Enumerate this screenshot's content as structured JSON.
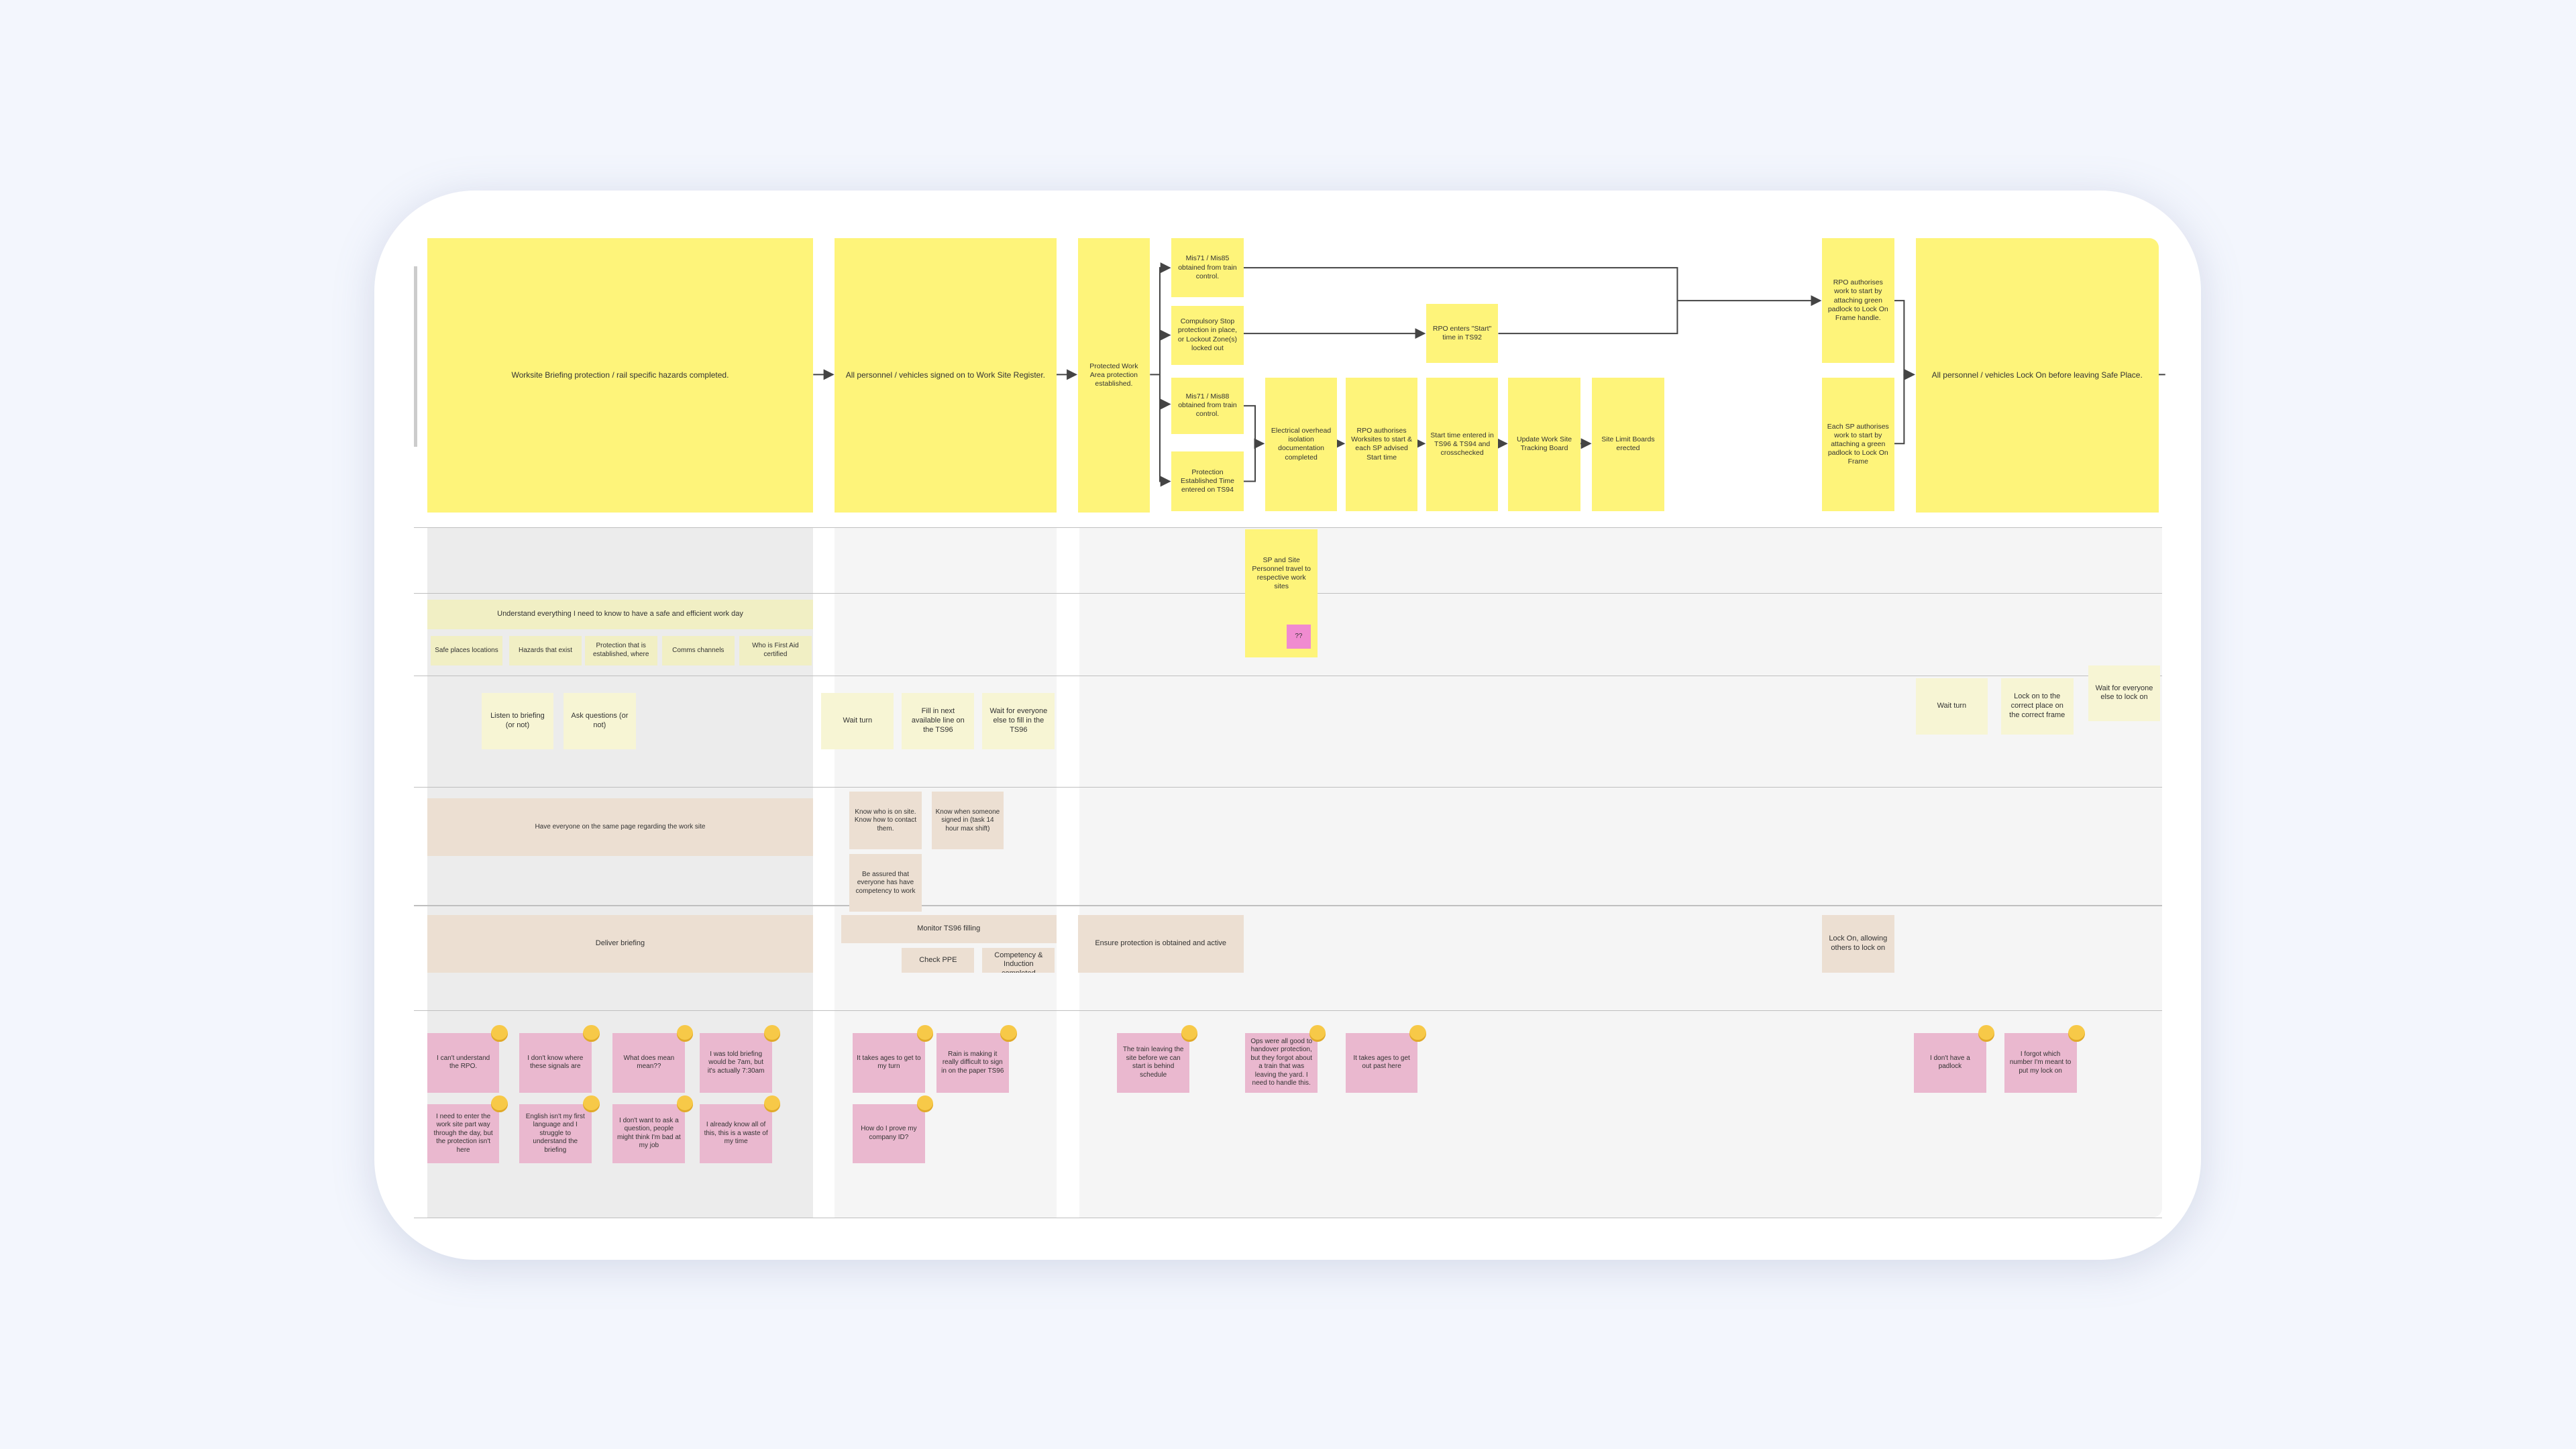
{
  "board": {
    "process_steps": [
      "Worksite Briefing protection / rail specific hazards completed.",
      "All personnel / vehicles signed on to Work Site Register.",
      "Protected Work Area protection established.",
      "Mis71 / Mis85 obtained from train control.",
      "Compulsory Stop protection in place, or Lockout Zone(s) locked out",
      "Mis71 / Mis88 obtained from train control.",
      "Protection Established Time entered on TS94",
      "Electrical overhead isolation documentation completed",
      "RPO authorises Worksites to start & each SP advised Start time",
      "Start time entered in TS96 & TS94 and crosschecked",
      "Update Work Site Tracking Board",
      "Site Limit Boards erected",
      "RPO enters \"Start\" time in TS92",
      "RPO authorises work to start by attaching green padlock to Lock On Frame handle.",
      "Each SP authorises work to start by attaching a green padlock to Lock On Frame",
      "All personnel / vehicles Lock On before leaving Safe Place."
    ],
    "travel_note": "SP and Site Personnel travel to respective work sites",
    "unknown_note": "??",
    "goal": "Understand everything I need to know to have a safe and efficient work day",
    "knowledge_needs": [
      "Safe places locations",
      "Hazards that exist",
      "Protection that is established, where",
      "Comms channels",
      "Who is First Aid certified"
    ],
    "actions": [
      "Listen to briefing (or not)",
      "Ask questions (or not)",
      "Wait turn",
      "Fill in next available line on the TS96",
      "Wait for everyone else to fill in the TS96",
      "Wait turn",
      "Lock on to the correct place on the correct frame",
      "Wait for everyone else to lock on"
    ],
    "needs": [
      "Have everyone on the same page regarding the work site",
      "Know who is on site. Know how to contact them.",
      "Know when someone signed in (task 14 hour max shift)",
      "Be assured that everyone has have competency to work"
    ],
    "tasks": [
      "Deliver briefing",
      "Monitor TS96 filling",
      "Check PPE",
      "Check Competency & Induction completed",
      "Ensure protection is obtained and active",
      "Lock On, allowing others to lock on"
    ],
    "pain_points": [
      "I can't understand the RPO.",
      "I don't know where these signals are",
      "What does mean mean??",
      "I was told briefing would be 7am, but it's actually 7:30am",
      "I need to enter the work site part way through the day, but the protection isn't here",
      "English isn't my first language and I struggle to understand the briefing",
      "I don't want to ask a question, people might think I'm bad at my job",
      "I already know all of this, this is a waste of my time",
      "It takes ages to get to my turn",
      "Rain is making it really difficult to sign in on the paper TS96",
      "How do I prove my company ID?",
      "The train leaving the site before we can start is behind schedule",
      "Ops were all good to handover protection, but they forgot about a train that was leaving the yard. I need to handle this.",
      "It takes ages to get out past here",
      "I don't have a padlock",
      "I forgot which number I'm meant to put my lock on"
    ]
  }
}
